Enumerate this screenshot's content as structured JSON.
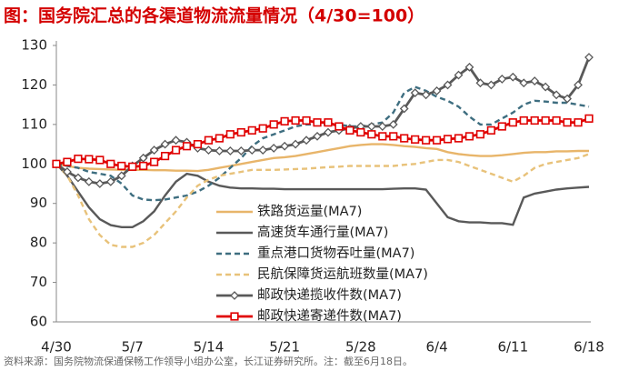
{
  "chart_data": {
    "type": "line",
    "title": "图：国务院汇总的各渠道物流流量情况（4/30=100）",
    "source": "资料来源：国务院物流保通保畅工作领导小组办公室，长江证券研究所。注：截至6月18日。",
    "categories": [
      "4/30",
      null,
      null,
      null,
      null,
      null,
      null,
      "5/7",
      null,
      null,
      null,
      null,
      null,
      null,
      "5/14",
      null,
      null,
      null,
      null,
      null,
      null,
      "5/21",
      null,
      null,
      null,
      null,
      null,
      null,
      "5/28",
      null,
      null,
      null,
      null,
      null,
      null,
      "6/4",
      null,
      null,
      null,
      null,
      null,
      null,
      "6/11",
      null,
      null,
      null,
      null,
      null,
      null,
      "6/18"
    ],
    "ylim": [
      60,
      130
    ],
    "yticks": [
      60,
      70,
      80,
      90,
      100,
      110,
      120,
      130
    ],
    "grid": false,
    "series": [
      {
        "name": "铁路货运量(MA7)",
        "color": "#e8b56a",
        "dash": false,
        "marker": null,
        "values": [
          100,
          99.5,
          99,
          98.8,
          98.7,
          98.6,
          98.5,
          98.5,
          98.5,
          98.4,
          98.4,
          98.3,
          98.3,
          98.2,
          98.5,
          99,
          99.5,
          100,
          100.5,
          101,
          101.5,
          101.7,
          102,
          102.5,
          103,
          103.5,
          104,
          104.5,
          104.8,
          105,
          105,
          104.8,
          104.5,
          104.3,
          104,
          103.8,
          103,
          102.5,
          102.2,
          102,
          102,
          102.2,
          102.5,
          102.8,
          103,
          103,
          103.2,
          103.2,
          103.3,
          103.3
        ]
      },
      {
        "name": "高速货车通行量(MA7)",
        "color": "#595959",
        "dash": false,
        "marker": null,
        "values": [
          100,
          97,
          93,
          89,
          86,
          84.5,
          84,
          84,
          85.5,
          88,
          92,
          95.5,
          97.5,
          97,
          95.5,
          94.5,
          94,
          93.8,
          93.8,
          93.7,
          93.7,
          93.6,
          93.6,
          93.6,
          93.6,
          93.6,
          93.6,
          93.6,
          93.6,
          93.6,
          93.6,
          93.7,
          93.8,
          93.8,
          93.5,
          90,
          86.5,
          85.5,
          85.2,
          85.2,
          85,
          85,
          84.6,
          91.5,
          92.5,
          93,
          93.5,
          93.8,
          94,
          94.2
        ]
      },
      {
        "name": "重点港口货物吞吐量(MA7)",
        "color": "#3e6e80",
        "dash": true,
        "marker": null,
        "values": [
          100,
          99.5,
          99,
          98,
          97.5,
          97,
          95,
          92,
          91,
          90.8,
          91,
          91.5,
          92,
          93,
          94.5,
          96.5,
          99,
          101.5,
          104.5,
          106.5,
          107.5,
          108.5,
          109.5,
          110,
          110,
          110,
          110,
          109.5,
          109.5,
          110,
          110.5,
          113,
          118,
          119.5,
          118.5,
          117,
          116,
          114.5,
          112,
          110,
          110,
          111.5,
          113,
          115,
          116,
          115.8,
          115.5,
          115.5,
          115,
          114.5
        ]
      },
      {
        "name": "民航保障货运航班数量(MA7)",
        "color": "#e8c27a",
        "dash": true,
        "marker": null,
        "values": [
          100,
          97,
          92,
          86,
          82,
          79.5,
          79,
          79,
          80,
          82,
          85,
          88,
          91.5,
          94.5,
          96,
          97,
          97.5,
          98,
          98.5,
          98.5,
          98.5,
          98.6,
          98.7,
          98.8,
          99,
          99.2,
          99.3,
          99.5,
          99.5,
          99.5,
          99.5,
          99.5,
          99.8,
          100,
          100.5,
          101,
          101,
          100.5,
          99.5,
          98.5,
          97.5,
          96.5,
          95.5,
          97,
          99,
          100,
          100.5,
          101,
          101.5,
          102.5
        ]
      },
      {
        "name": "邮政快递揽收件数(MA7)",
        "color": "#595959",
        "dash": false,
        "marker": "diamond",
        "values": [
          100,
          98,
          96.5,
          95.5,
          95,
          95.5,
          97,
          99.5,
          101.5,
          103.5,
          105,
          106,
          105.5,
          104,
          103.5,
          103.3,
          103.3,
          103.3,
          103.5,
          103.5,
          104,
          104.5,
          105,
          106,
          107,
          108,
          108.5,
          109,
          109.5,
          109.5,
          109.5,
          110,
          114,
          118,
          117.5,
          118.5,
          120,
          122.5,
          124.5,
          120.5,
          120,
          121.5,
          122,
          120.5,
          121,
          119.5,
          117.5,
          116.5,
          120,
          127
        ]
      },
      {
        "name": "邮政快递寄递件数(MA7)",
        "color": "#e00000",
        "dash": false,
        "marker": "square",
        "values": [
          100,
          100.5,
          101.3,
          101.2,
          101,
          100,
          99.5,
          99.3,
          99.5,
          100.5,
          102,
          103.5,
          104.5,
          105,
          106,
          106.5,
          107.5,
          108,
          108.5,
          109,
          110,
          110.8,
          111,
          111,
          110.5,
          110.5,
          109.5,
          108.5,
          108,
          107.5,
          107,
          107,
          106.5,
          106.2,
          106,
          106,
          106.3,
          106.5,
          107,
          107.5,
          108.5,
          109.5,
          110.5,
          111,
          111,
          111,
          111,
          110.5,
          110.5,
          111.5
        ]
      }
    ]
  }
}
